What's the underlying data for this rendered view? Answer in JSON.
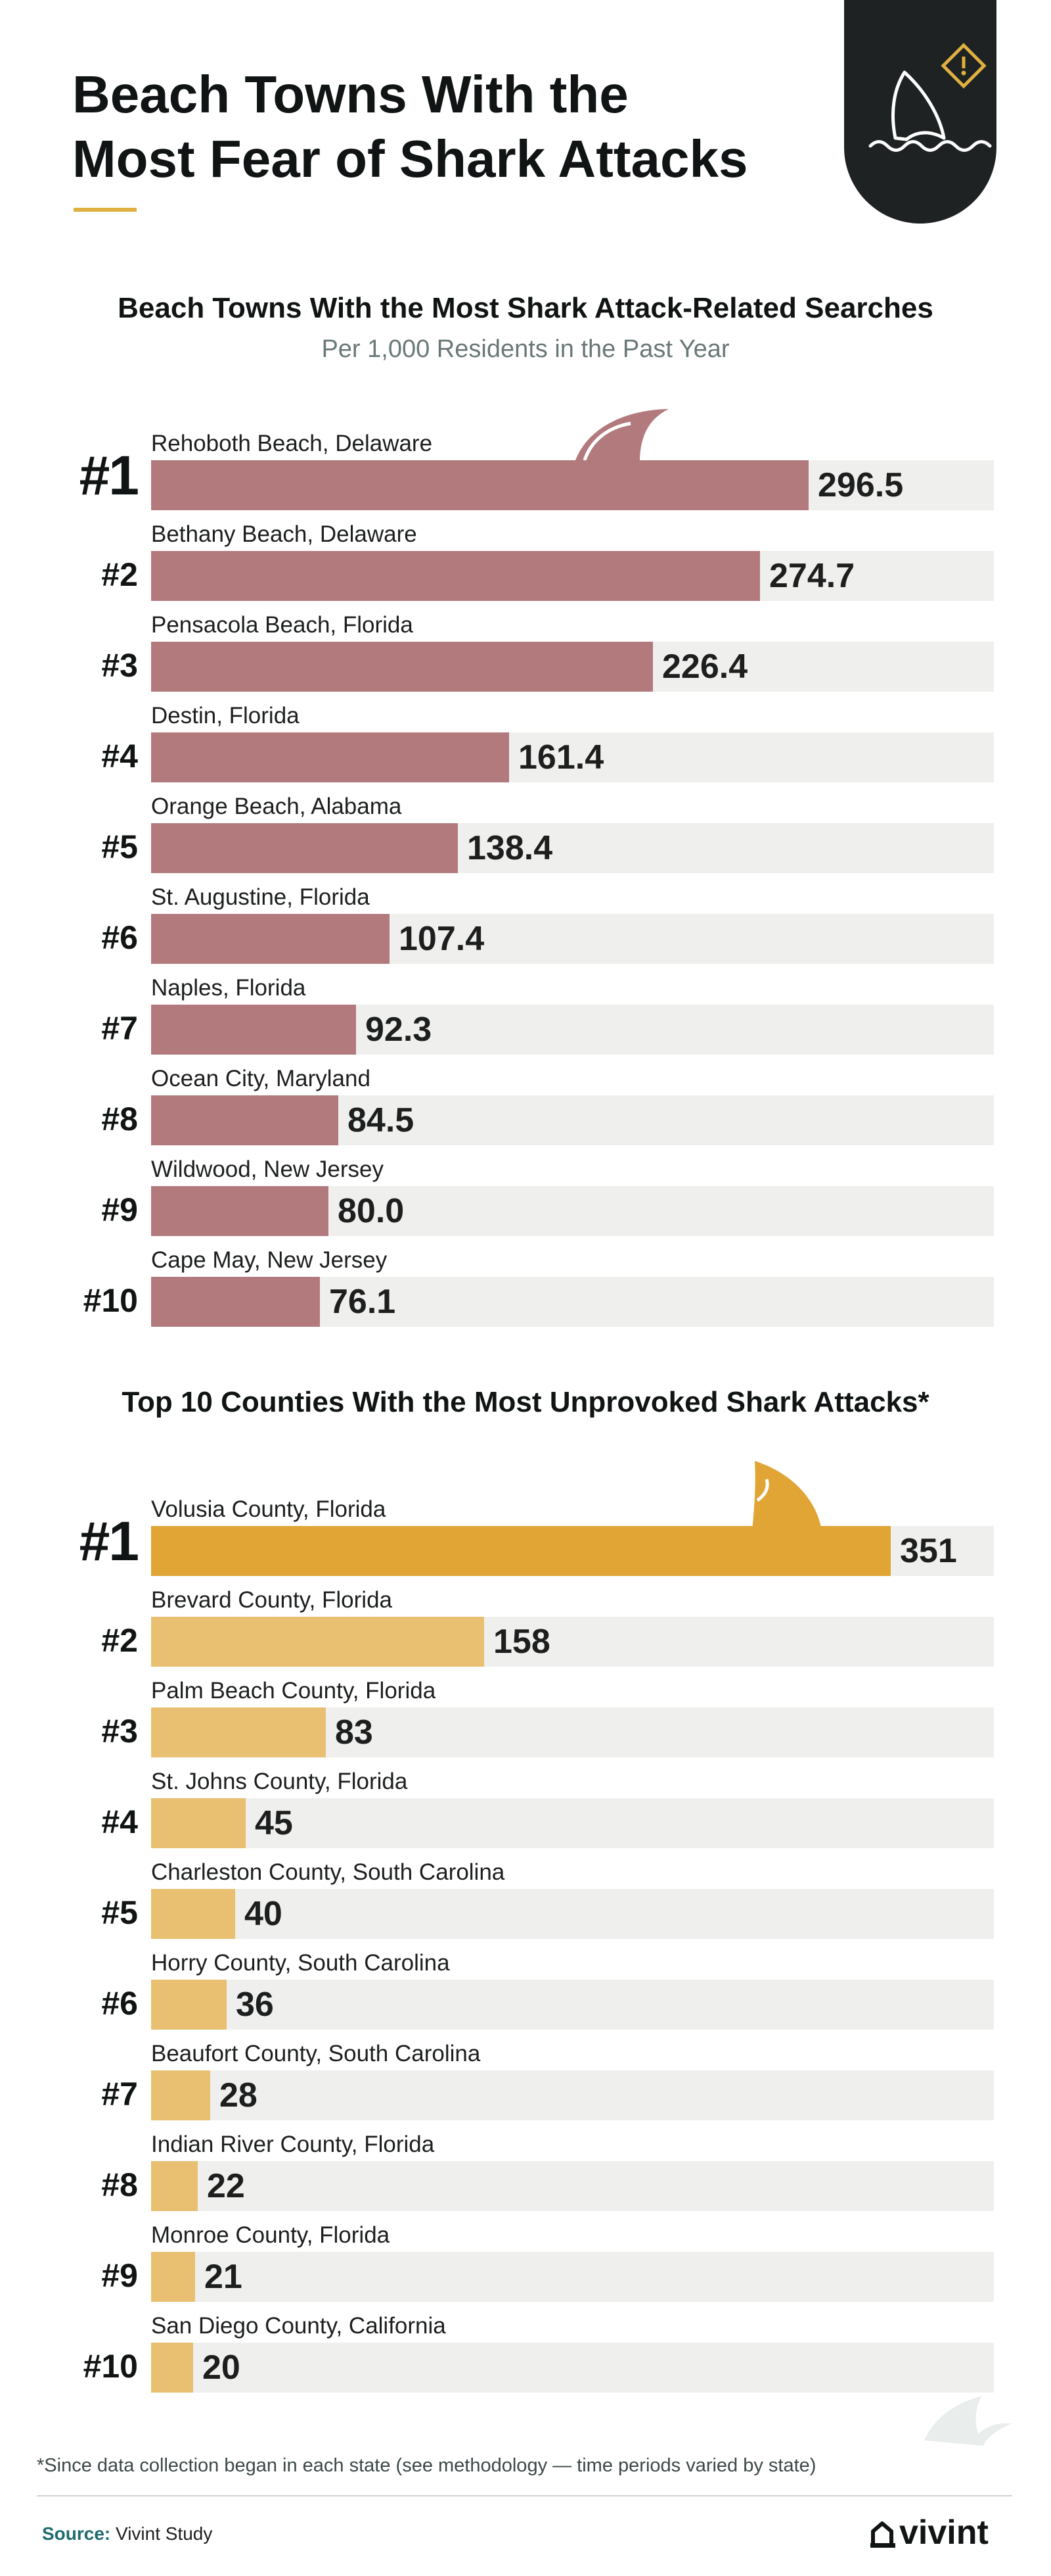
{
  "header": {
    "title_line1": "Beach Towns With the",
    "title_line2": "Most Fear of Shark Attacks",
    "accent_color": "#e0b040",
    "badge_icons": [
      "shark-fin-icon",
      "warning-icon"
    ]
  },
  "chart_data": [
    {
      "type": "bar",
      "orientation": "horizontal",
      "title": "Beach Towns With the Most Shark Attack-Related Searches",
      "subtitle": "Per 1,000 Residents in the Past Year",
      "xlim": [
        0,
        380
      ],
      "bar_color": "#b37a7e",
      "ranks": [
        "#1",
        "#2",
        "#3",
        "#4",
        "#5",
        "#6",
        "#7",
        "#8",
        "#9",
        "#10"
      ],
      "categories": [
        "Rehoboth Beach, Delaware",
        "Bethany Beach, Delaware",
        "Pensacola Beach, Florida",
        "Destin, Florida",
        "Orange Beach, Alabama",
        "St. Augustine, Florida",
        "Naples, Florida",
        "Ocean City, Maryland",
        "Wildwood, New Jersey",
        "Cape May, New Jersey"
      ],
      "values": [
        296.5,
        274.7,
        226.4,
        161.4,
        138.4,
        107.4,
        92.3,
        84.5,
        80.0,
        76.1
      ],
      "value_labels": [
        "296.5",
        "274.7",
        "226.4",
        "161.4",
        "138.4",
        "107.4",
        "92.3",
        "84.5",
        "80.0",
        "76.1"
      ]
    },
    {
      "type": "bar",
      "orientation": "horizontal",
      "title": "Top 10 Counties With the Most Unprovoked Shark Attacks*",
      "xlim": [
        0,
        400
      ],
      "bar_color": "#e9c071",
      "highlight_color": "#e0a535",
      "ranks": [
        "#1",
        "#2",
        "#3",
        "#4",
        "#5",
        "#6",
        "#7",
        "#8",
        "#9",
        "#10"
      ],
      "categories": [
        "Volusia County, Florida",
        "Brevard County, Florida",
        "Palm Beach County, Florida",
        "St. Johns County, Florida",
        "Charleston County, South Carolina",
        "Horry County, South Carolina",
        "Beaufort County, South Carolina",
        "Indian River County, Florida",
        "Monroe County, Florida",
        "San Diego County, California"
      ],
      "values": [
        351,
        158,
        83,
        45,
        40,
        36,
        28,
        22,
        21,
        20
      ],
      "value_labels": [
        "351",
        "158",
        "83",
        "45",
        "40",
        "36",
        "28",
        "22",
        "21",
        "20"
      ]
    }
  ],
  "footer": {
    "footnote": "*Since data collection began in each state (see methodology — time periods varied by state)",
    "source_label": "Source:",
    "source_text": "Vivint Study",
    "logo_text": "vivint"
  }
}
